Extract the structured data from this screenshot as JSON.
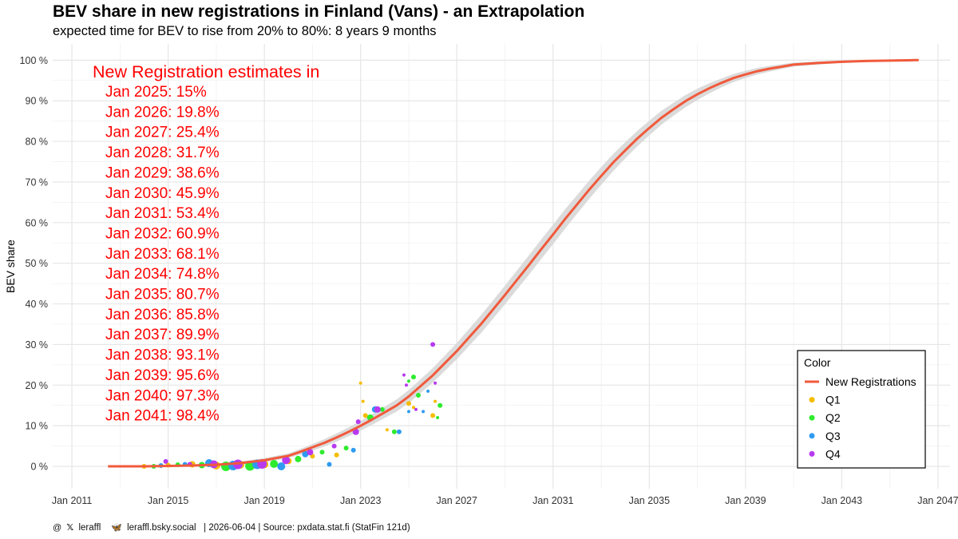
{
  "title": "BEV share in new registrations in Finland (Vans) - an Extrapolation",
  "subtitle": "expected time for BEV to rise from 20% to 80%: 8 years 9 months",
  "caption": {
    "handle_x": "leraffl",
    "handle_bsky": "leraffl.bsky.social",
    "date": "| 2026-06-04",
    "source": "| Source: pxdata.stat.fi (StatFin 121d)"
  },
  "colors": {
    "curve": "#F05A3C",
    "ribbon": "#D9D9D9",
    "Q1": "#F5BD00",
    "Q2": "#2EEB2E",
    "Q3": "#2E9BF0",
    "Q4": "#B73AF0",
    "annotation": "#FF0000"
  },
  "annotation": {
    "heading": "New Registration estimates in",
    "lines": [
      "Jan 2025: 15%",
      "Jan 2026: 19.8%",
      "Jan 2027: 25.4%",
      "Jan 2028: 31.7%",
      "Jan 2029: 38.6%",
      "Jan 2030: 45.9%",
      "Jan 2031: 53.4%",
      "Jan 2032: 60.9%",
      "Jan 2033: 68.1%",
      "Jan 2034: 74.8%",
      "Jan 2035: 80.7%",
      "Jan 2036: 85.8%",
      "Jan 2037: 89.9%",
      "Jan 2038: 93.1%",
      "Jan 2039: 95.6%",
      "Jan 2040: 97.3%",
      "Jan 2041: 98.4%"
    ]
  },
  "chart_data": {
    "type": "scatter",
    "xlabel": "",
    "ylabel": "BEV share",
    "xlim": [
      2010.2,
      2047.5
    ],
    "ylim": [
      -5.5,
      104
    ],
    "x_ticks": [
      {
        "v": 2011,
        "label": "Jan 2011"
      },
      {
        "v": 2015,
        "label": "Jan 2015"
      },
      {
        "v": 2019,
        "label": "Jan 2019"
      },
      {
        "v": 2023,
        "label": "Jan 2023"
      },
      {
        "v": 2027,
        "label": "Jan 2027"
      },
      {
        "v": 2031,
        "label": "Jan 2031"
      },
      {
        "v": 2035,
        "label": "Jan 2035"
      },
      {
        "v": 2039,
        "label": "Jan 2039"
      },
      {
        "v": 2043,
        "label": "Jan 2043"
      },
      {
        "v": 2047,
        "label": "Jan 2047"
      }
    ],
    "y_ticks": [
      {
        "v": 0,
        "label": "0 %"
      },
      {
        "v": 10,
        "label": "10 %"
      },
      {
        "v": 20,
        "label": "20 %"
      },
      {
        "v": 30,
        "label": "30 %"
      },
      {
        "v": 40,
        "label": "40 %"
      },
      {
        "v": 50,
        "label": "50 %"
      },
      {
        "v": 60,
        "label": "60 %"
      },
      {
        "v": 70,
        "label": "70 %"
      },
      {
        "v": 80,
        "label": "80 %"
      },
      {
        "v": 90,
        "label": "90 %"
      },
      {
        "v": 100,
        "label": "100 %"
      }
    ],
    "grid": true,
    "legend": {
      "title": "Color",
      "position": "bottom-right",
      "items": [
        {
          "label": "New Registrations",
          "kind": "line",
          "key": "curve"
        },
        {
          "label": "Q1",
          "kind": "point",
          "key": "Q1"
        },
        {
          "label": "Q2",
          "kind": "point",
          "key": "Q2"
        },
        {
          "label": "Q3",
          "kind": "point",
          "key": "Q3"
        },
        {
          "label": "Q4",
          "kind": "point",
          "key": "Q4"
        }
      ]
    },
    "curve": {
      "name": "New Registrations",
      "x": [
        2012.5,
        2014.0,
        2015.0,
        2016.0,
        2017.0,
        2018.0,
        2019.0,
        2020.0,
        2020.5,
        2021.0,
        2021.5,
        2022.0,
        2022.5,
        2023.0,
        2023.5,
        2024.0,
        2024.5,
        2025.0,
        2025.5,
        2026.0,
        2026.5,
        2027.0,
        2027.5,
        2028.0,
        2028.5,
        2029.0,
        2029.5,
        2030.0,
        2030.5,
        2031.0,
        2031.5,
        2032.0,
        2032.5,
        2033.0,
        2033.5,
        2034.0,
        2034.5,
        2035.0,
        2035.5,
        2036.0,
        2036.5,
        2037.0,
        2037.5,
        2038.0,
        2038.5,
        2039.0,
        2039.5,
        2040.0,
        2040.5,
        2041.0,
        2042.0,
        2043.0,
        2044.0,
        2045.0,
        2046.0,
        2046.2
      ],
      "y": [
        0.0,
        0.0,
        0.1,
        0.2,
        0.4,
        0.8,
        1.5,
        2.6,
        3.6,
        4.7,
        5.8,
        7.1,
        8.5,
        10.0,
        11.6,
        13.3,
        15.0,
        17.2,
        19.8,
        22.4,
        25.4,
        28.4,
        31.7,
        35.0,
        38.6,
        42.2,
        45.9,
        49.6,
        53.4,
        57.1,
        60.9,
        64.5,
        68.1,
        71.5,
        74.8,
        77.8,
        80.7,
        83.3,
        85.8,
        87.9,
        89.9,
        91.6,
        93.1,
        94.4,
        95.6,
        96.5,
        97.3,
        97.9,
        98.4,
        98.9,
        99.3,
        99.6,
        99.8,
        99.9,
        100.0,
        100.0
      ],
      "band": [
        0.1,
        0.1,
        0.15,
        0.2,
        0.3,
        0.4,
        0.5,
        0.6,
        0.7,
        0.8,
        0.9,
        1.0,
        1.1,
        1.2,
        1.3,
        1.4,
        1.5,
        1.6,
        1.7,
        1.8,
        1.9,
        2.0,
        2.1,
        2.2,
        2.25,
        2.3,
        2.35,
        2.4,
        2.4,
        2.4,
        2.4,
        2.3,
        2.25,
        2.2,
        2.1,
        2.0,
        1.9,
        1.8,
        1.7,
        1.6,
        1.5,
        1.4,
        1.25,
        1.1,
        1.0,
        0.9,
        0.8,
        0.7,
        0.6,
        0.5,
        0.4,
        0.3,
        0.2,
        0.15,
        0.1,
        0.1
      ]
    },
    "series": [
      {
        "name": "Q1",
        "points": [
          [
            2014.0,
            0.0,
            3
          ],
          [
            2015.0,
            0.3,
            3
          ],
          [
            2016.0,
            0.5,
            4
          ],
          [
            2017.0,
            0.2,
            5
          ],
          [
            2018.0,
            0.4,
            5
          ],
          [
            2019.0,
            0.5,
            5
          ],
          [
            2020.0,
            1.3,
            4
          ],
          [
            2021.0,
            2.5,
            3
          ],
          [
            2022.0,
            2.8,
            3
          ],
          [
            2023.0,
            20.5,
            2
          ],
          [
            2023.1,
            16.0,
            2
          ],
          [
            2023.2,
            12.5,
            3
          ],
          [
            2024.1,
            9.0,
            2
          ],
          [
            2025.0,
            15.5,
            3
          ],
          [
            2025.2,
            14.5,
            2
          ],
          [
            2026.0,
            12.5,
            3
          ],
          [
            2026.1,
            16.0,
            2
          ]
        ]
      },
      {
        "name": "Q2",
        "points": [
          [
            2014.4,
            0.0,
            3
          ],
          [
            2015.4,
            0.4,
            3
          ],
          [
            2016.4,
            0.3,
            4
          ],
          [
            2017.4,
            0.0,
            6
          ],
          [
            2018.4,
            0.1,
            6
          ],
          [
            2019.4,
            0.6,
            5
          ],
          [
            2020.4,
            1.8,
            4
          ],
          [
            2021.4,
            3.5,
            3
          ],
          [
            2022.4,
            4.5,
            3
          ],
          [
            2023.4,
            12.0,
            4
          ],
          [
            2023.9,
            14.0,
            3
          ],
          [
            2024.4,
            8.5,
            3
          ],
          [
            2025.0,
            21.0,
            2
          ],
          [
            2025.2,
            22.0,
            3
          ],
          [
            2025.4,
            17.5,
            3
          ],
          [
            2026.2,
            12.0,
            2
          ],
          [
            2026.3,
            15.0,
            3
          ]
        ]
      },
      {
        "name": "Q3",
        "points": [
          [
            2014.7,
            0.2,
            3
          ],
          [
            2015.7,
            0.5,
            3
          ],
          [
            2016.7,
            0.8,
            5
          ],
          [
            2017.7,
            0.2,
            6
          ],
          [
            2018.7,
            0.5,
            6
          ],
          [
            2019.7,
            0.0,
            5
          ],
          [
            2020.7,
            3.0,
            4
          ],
          [
            2021.7,
            0.5,
            3
          ],
          [
            2022.7,
            4.0,
            3
          ],
          [
            2023.6,
            14.0,
            4
          ],
          [
            2024.6,
            8.5,
            3
          ],
          [
            2025.0,
            13.5,
            2
          ],
          [
            2025.6,
            13.5,
            2
          ],
          [
            2025.8,
            18.5,
            2
          ]
        ]
      },
      {
        "name": "Q4",
        "points": [
          [
            2014.9,
            1.2,
            3
          ],
          [
            2015.9,
            0.5,
            3
          ],
          [
            2016.9,
            0.5,
            5
          ],
          [
            2017.9,
            0.5,
            6
          ],
          [
            2018.9,
            0.6,
            6
          ],
          [
            2019.9,
            1.5,
            5
          ],
          [
            2020.9,
            3.5,
            4
          ],
          [
            2021.9,
            5.0,
            3
          ],
          [
            2022.8,
            8.5,
            4
          ],
          [
            2022.9,
            11.0,
            3
          ],
          [
            2023.7,
            14.0,
            4
          ],
          [
            2024.8,
            22.5,
            2
          ],
          [
            2024.9,
            20.0,
            2
          ],
          [
            2025.3,
            14.0,
            2
          ],
          [
            2026.0,
            30.0,
            3
          ],
          [
            2026.1,
            20.5,
            2
          ]
        ]
      }
    ]
  }
}
